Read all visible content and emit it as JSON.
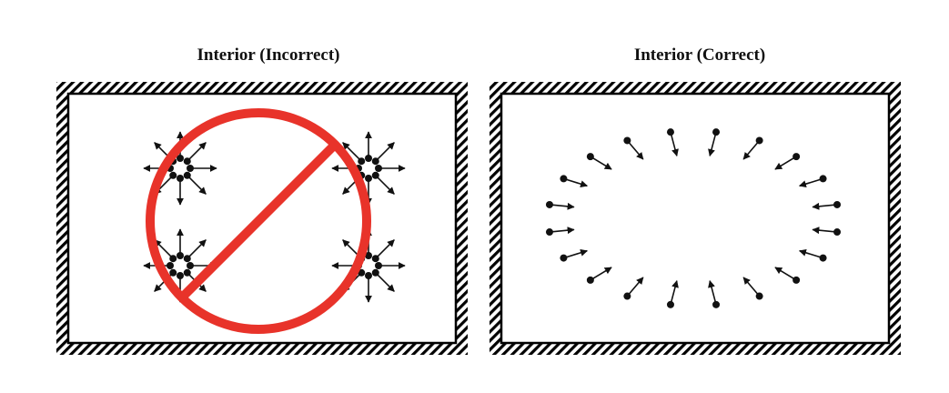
{
  "panels": [
    {
      "title": "Interior (Incorrect)",
      "verdict": "incorrect"
    },
    {
      "title": "Interior (Correct)",
      "verdict": "correct"
    }
  ],
  "colors": {
    "prohibition": "#e8332a",
    "frame_fill": "#ffffff",
    "hatch": "#000000",
    "ink": "#111111"
  },
  "icons": {
    "prohibition": "prohibition-sign-icon",
    "vector": "arrow-icon"
  }
}
